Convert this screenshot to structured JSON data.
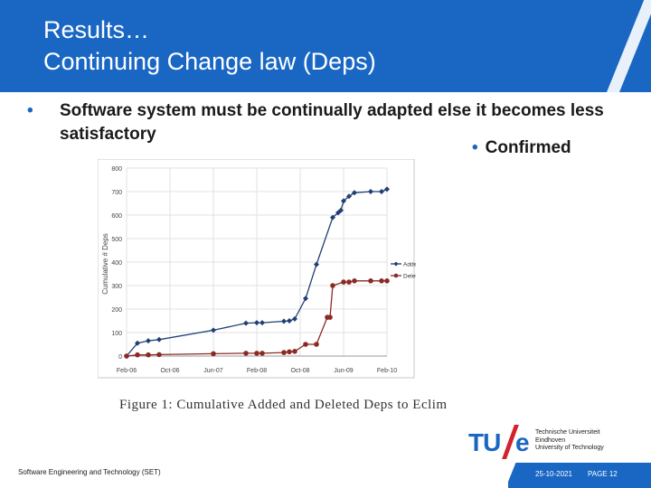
{
  "slide": {
    "title_line1": "Results…",
    "title_line2": "Continuing Change law (Deps)",
    "bullet_main": "Software system must be continually adapted else it becomes less satisfactory",
    "bullet_confirmed": "Confirmed",
    "bullet_glyph": "•",
    "caption": "Figure 1: Cumulative Added and Deleted Deps to Eclim"
  },
  "footer": {
    "left": "Software Engineering and Technology (SET)",
    "date": "25-10-2021",
    "page": "PAGE 12"
  },
  "logo": {
    "tu": "TU",
    "e": "e",
    "univ_line1": "Technische Universiteit",
    "univ_line2": "Eindhoven",
    "univ_line3": "University of Technology"
  },
  "colors": {
    "brand_blue": "#1a67c3",
    "logo_red": "#d2232a",
    "added_series": "#1f3f74",
    "deleted_series": "#8b2a24"
  },
  "chart_data": {
    "type": "line",
    "ylabel": "Cumulative # Deps",
    "xlabel": "",
    "ylim": [
      0,
      800
    ],
    "yticks": [
      0,
      100,
      200,
      300,
      400,
      500,
      600,
      700,
      800
    ],
    "ytick_labels": [
      "0",
      "100",
      "200",
      "300",
      "400",
      "500",
      "600",
      "700",
      "800"
    ],
    "xlim": [
      0,
      48
    ],
    "xticks": [
      0,
      8,
      16,
      24,
      32,
      40,
      48
    ],
    "xtick_labels": [
      "Feb-06",
      "Oct-06",
      "Jun-07",
      "Feb-08",
      "Oct-08",
      "Jun-09",
      "Feb-10"
    ],
    "grid": true,
    "legend_position": "right",
    "series": [
      {
        "name": "Added",
        "color": "#1f3f74",
        "x": [
          0,
          2,
          4,
          6,
          16,
          22,
          24,
          25,
          29,
          30,
          31,
          33,
          35,
          38,
          39,
          39.5,
          40,
          41,
          42,
          45,
          47,
          48
        ],
        "y": [
          0,
          55,
          65,
          70,
          110,
          140,
          142,
          142,
          148,
          150,
          158,
          245,
          390,
          590,
          610,
          620,
          660,
          680,
          695,
          700,
          700,
          710
        ]
      },
      {
        "name": "Deleted",
        "color": "#8b2a24",
        "x": [
          0,
          2,
          4,
          6,
          16,
          22,
          24,
          25,
          29,
          30,
          31,
          33,
          35,
          37,
          37.5,
          38,
          40,
          41,
          42,
          45,
          47,
          48
        ],
        "y": [
          0,
          5,
          5,
          6,
          10,
          12,
          12,
          12,
          15,
          18,
          20,
          50,
          50,
          165,
          165,
          300,
          315,
          315,
          320,
          320,
          320,
          320
        ]
      }
    ]
  }
}
